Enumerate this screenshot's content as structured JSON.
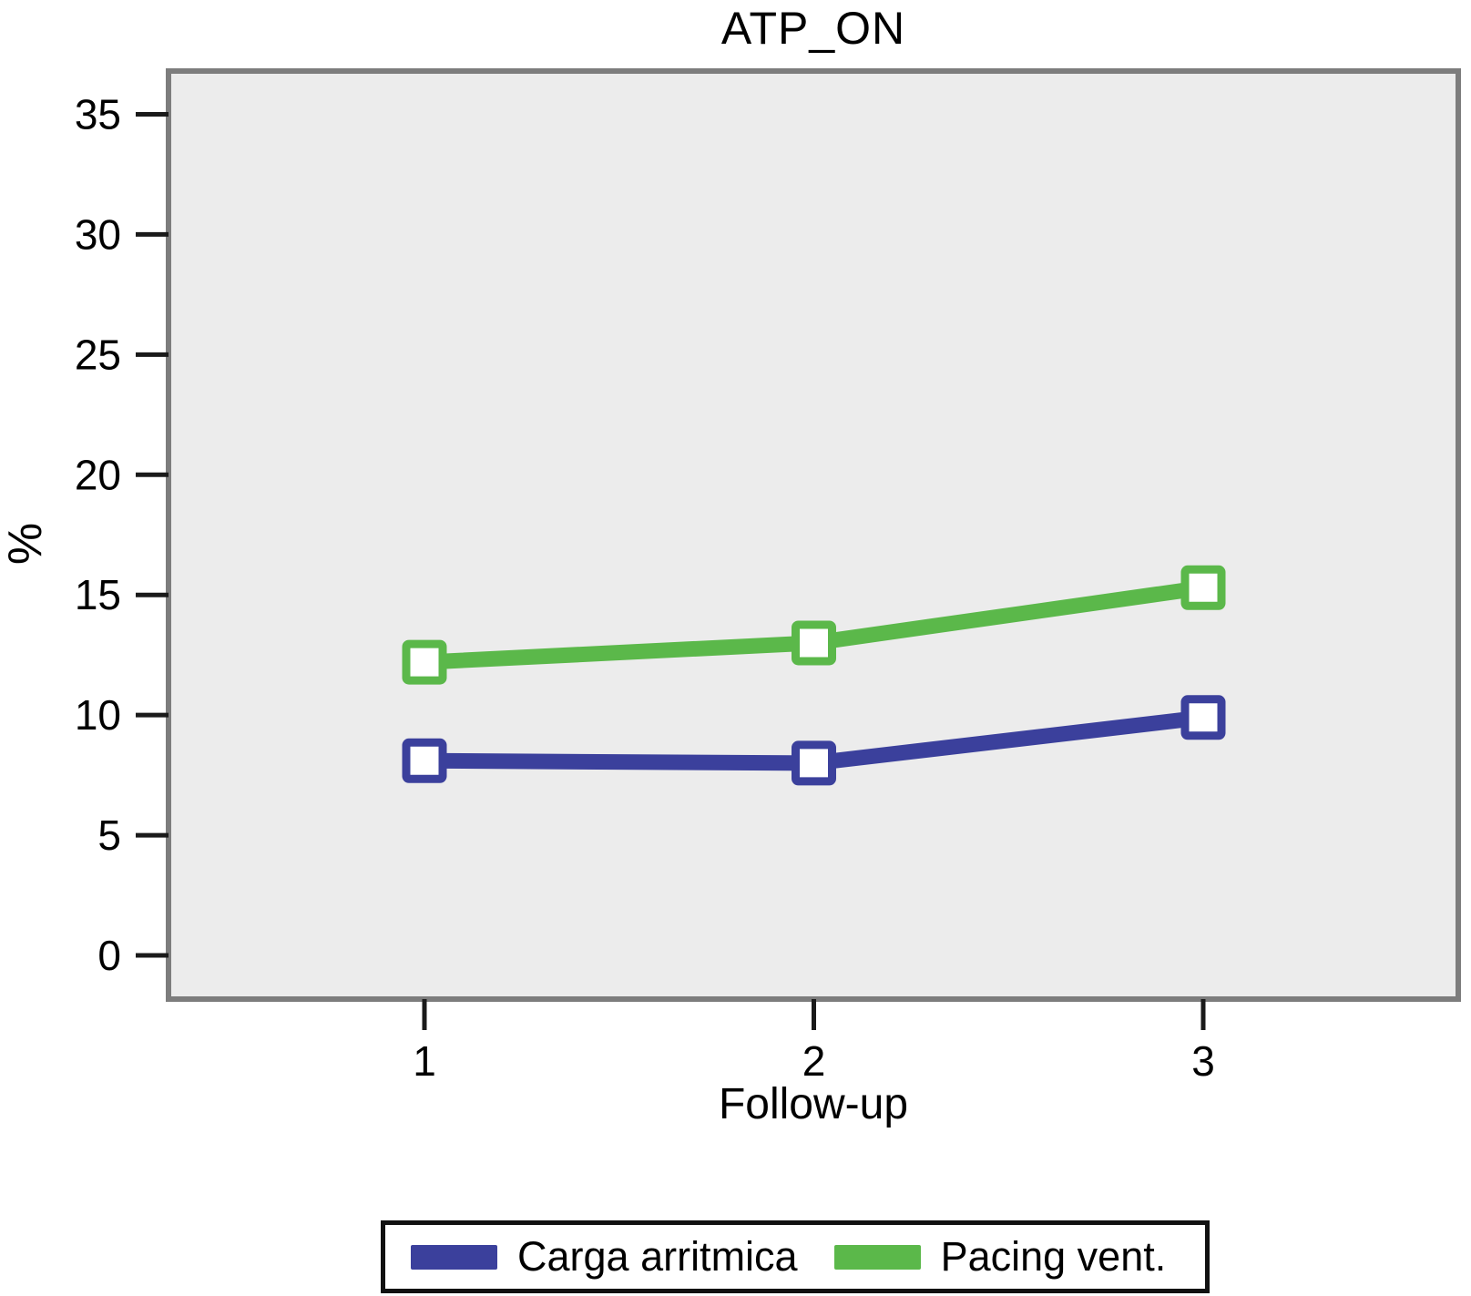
{
  "chart_data": {
    "type": "line",
    "title": "ATP_ON",
    "xlabel": "Follow-up",
    "ylabel": "%",
    "x": [
      1,
      2,
      3
    ],
    "x_tick_labels": [
      "1",
      "2",
      "3"
    ],
    "yticks": [
      0,
      5,
      10,
      15,
      20,
      25,
      30,
      35
    ],
    "ylim": [
      -1.9,
      36.9
    ],
    "xlim": [
      0.34,
      3.66
    ],
    "grid": false,
    "legend_position": "bottom",
    "plot_background": "#ececec",
    "axis_frame_color": "#7d7d7d",
    "tick_color": "#1a1a1a",
    "marker": "square-white",
    "series": [
      {
        "name": "Carga arritmica",
        "color": "#3b409c",
        "values": [
          8.1,
          8.0,
          9.9
        ]
      },
      {
        "name": "Pacing vent.",
        "color": "#5bb84a",
        "values": [
          12.2,
          13.0,
          15.3
        ]
      }
    ]
  }
}
